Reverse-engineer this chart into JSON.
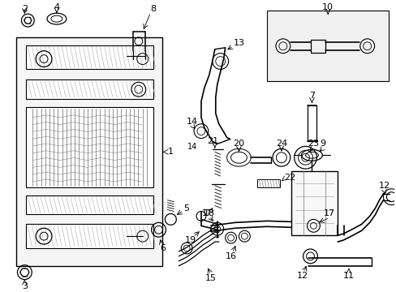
{
  "bg_color": "#ffffff",
  "line_color": "#000000",
  "fig_width": 4.89,
  "fig_height": 3.6,
  "dpi": 100
}
